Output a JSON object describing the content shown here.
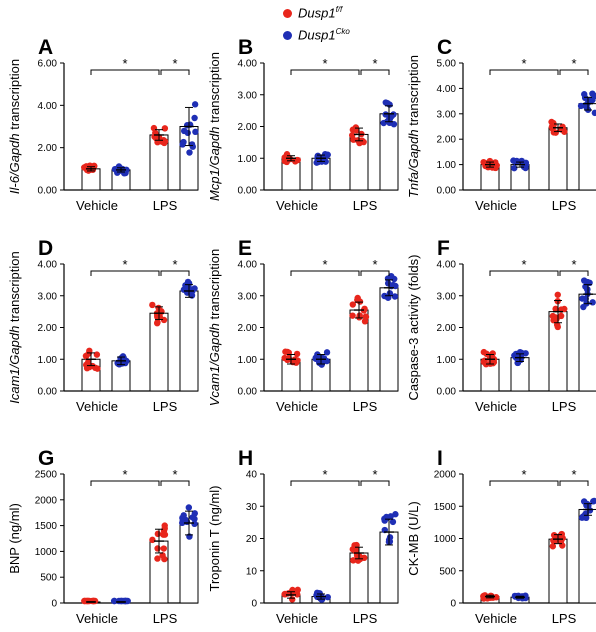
{
  "legend": {
    "wt": {
      "label": "Dusp1",
      "sup": "f/f",
      "color": "#e8261c"
    },
    "ko": {
      "label": "Dusp1",
      "sup": "Cko",
      "color": "#1f2fb5"
    }
  },
  "colors": {
    "wt": "#e8261c",
    "ko": "#1f2fb5"
  },
  "chart_data": [
    {
      "id": "A",
      "letter": "A",
      "type": "bar",
      "ylabel": "Il-6/Gapdh transcription",
      "ylim": [
        0,
        6
      ],
      "yticks": [
        "0.00",
        "2.00",
        "4.00",
        "6.00"
      ],
      "groups": [
        "Vehicle",
        "LPS"
      ],
      "series": [
        {
          "group": "Vehicle",
          "genotype": "wt",
          "mean": 1.0,
          "sd": 0.1
        },
        {
          "group": "Vehicle",
          "genotype": "ko",
          "mean": 0.95,
          "sd": 0.1
        },
        {
          "group": "LPS",
          "genotype": "wt",
          "mean": 2.6,
          "sd": 0.25
        },
        {
          "group": "LPS",
          "genotype": "ko",
          "mean": 3.0,
          "sd": 0.9
        }
      ],
      "significance": [
        {
          "bracket": "vehicle-wt to lps-wt",
          "label": "*"
        },
        {
          "bracket": "lps-wt to lps-ko",
          "label": "*"
        }
      ]
    },
    {
      "id": "B",
      "letter": "B",
      "type": "bar",
      "ylabel": "Mcp1/Gapdh transcription",
      "ylim": [
        0,
        4
      ],
      "yticks": [
        "0.00",
        "1.00",
        "2.00",
        "3.00",
        "4.00"
      ],
      "groups": [
        "Vehicle",
        "LPS"
      ],
      "series": [
        {
          "group": "Vehicle",
          "genotype": "wt",
          "mean": 1.0,
          "sd": 0.08
        },
        {
          "group": "Vehicle",
          "genotype": "ko",
          "mean": 1.0,
          "sd": 0.1
        },
        {
          "group": "LPS",
          "genotype": "wt",
          "mean": 1.75,
          "sd": 0.2
        },
        {
          "group": "LPS",
          "genotype": "ko",
          "mean": 2.4,
          "sd": 0.25
        }
      ],
      "significance": [
        {
          "bracket": "vehicle-wt to lps-wt",
          "label": "*"
        },
        {
          "bracket": "lps-wt to lps-ko",
          "label": "*"
        }
      ]
    },
    {
      "id": "C",
      "letter": "C",
      "type": "bar",
      "ylabel": "Tnfa/Gapdh transcription",
      "ylim": [
        0,
        5
      ],
      "yticks": [
        "0.00",
        "1.00",
        "2.00",
        "3.00",
        "4.00",
        "5.00"
      ],
      "groups": [
        "Vehicle",
        "LPS"
      ],
      "series": [
        {
          "group": "Vehicle",
          "genotype": "wt",
          "mean": 1.0,
          "sd": 0.1
        },
        {
          "group": "Vehicle",
          "genotype": "ko",
          "mean": 1.0,
          "sd": 0.1
        },
        {
          "group": "LPS",
          "genotype": "wt",
          "mean": 2.45,
          "sd": 0.15
        },
        {
          "group": "LPS",
          "genotype": "ko",
          "mean": 3.4,
          "sd": 0.25
        }
      ],
      "significance": [
        {
          "bracket": "vehicle-wt to lps-wt",
          "label": "*"
        },
        {
          "bracket": "lps-wt to lps-ko",
          "label": "*"
        }
      ]
    },
    {
      "id": "D",
      "letter": "D",
      "type": "bar",
      "ylabel": "Icam1/Gapdh transcription",
      "ylim": [
        0,
        4
      ],
      "yticks": [
        "0.00",
        "1.00",
        "2.00",
        "3.00",
        "4.00"
      ],
      "groups": [
        "Vehicle",
        "LPS"
      ],
      "series": [
        {
          "group": "Vehicle",
          "genotype": "wt",
          "mean": 1.0,
          "sd": 0.2
        },
        {
          "group": "Vehicle",
          "genotype": "ko",
          "mean": 0.95,
          "sd": 0.12
        },
        {
          "group": "LPS",
          "genotype": "wt",
          "mean": 2.45,
          "sd": 0.2
        },
        {
          "group": "LPS",
          "genotype": "ko",
          "mean": 3.15,
          "sd": 0.2
        }
      ],
      "significance": [
        {
          "bracket": "vehicle-wt to lps-wt",
          "label": "*"
        },
        {
          "bracket": "lps-wt to lps-ko",
          "label": "*"
        }
      ]
    },
    {
      "id": "E",
      "letter": "E",
      "type": "bar",
      "ylabel": "Vcam1/Gapdh transcription",
      "ylim": [
        0,
        4
      ],
      "yticks": [
        "0.00",
        "1.00",
        "2.00",
        "3.00",
        "4.00"
      ],
      "groups": [
        "Vehicle",
        "LPS"
      ],
      "series": [
        {
          "group": "Vehicle",
          "genotype": "wt",
          "mean": 1.0,
          "sd": 0.15
        },
        {
          "group": "Vehicle",
          "genotype": "ko",
          "mean": 1.0,
          "sd": 0.15
        },
        {
          "group": "LPS",
          "genotype": "wt",
          "mean": 2.55,
          "sd": 0.25
        },
        {
          "group": "LPS",
          "genotype": "ko",
          "mean": 3.25,
          "sd": 0.25
        }
      ],
      "significance": [
        {
          "bracket": "vehicle-wt to lps-wt",
          "label": "*"
        },
        {
          "bracket": "lps-wt to lps-ko",
          "label": "*"
        }
      ]
    },
    {
      "id": "F",
      "letter": "F",
      "type": "bar",
      "ylabel": "Caspase-3 activity (folds)",
      "ylim": [
        0,
        4
      ],
      "yticks": [
        "0.00",
        "1.00",
        "2.00",
        "3.00",
        "4.00"
      ],
      "groups": [
        "Vehicle",
        "LPS"
      ],
      "series": [
        {
          "group": "Vehicle",
          "genotype": "wt",
          "mean": 1.0,
          "sd": 0.15
        },
        {
          "group": "Vehicle",
          "genotype": "ko",
          "mean": 1.05,
          "sd": 0.12
        },
        {
          "group": "LPS",
          "genotype": "wt",
          "mean": 2.5,
          "sd": 0.35
        },
        {
          "group": "LPS",
          "genotype": "ko",
          "mean": 3.05,
          "sd": 0.3
        }
      ],
      "significance": [
        {
          "bracket": "vehicle-wt to lps-wt",
          "label": "*"
        },
        {
          "bracket": "lps-wt to lps-ko",
          "label": "*"
        }
      ]
    },
    {
      "id": "G",
      "letter": "G",
      "type": "bar",
      "ylabel": "BNP (ng/ml)",
      "ylim": [
        0,
        2500
      ],
      "yticks": [
        "0",
        "500",
        "1000",
        "1500",
        "2000",
        "2500"
      ],
      "groups": [
        "Vehicle",
        "LPS"
      ],
      "series": [
        {
          "group": "Vehicle",
          "genotype": "wt",
          "mean": 20,
          "sd": 5
        },
        {
          "group": "Vehicle",
          "genotype": "ko",
          "mean": 20,
          "sd": 5
        },
        {
          "group": "LPS",
          "genotype": "wt",
          "mean": 1200,
          "sd": 230
        },
        {
          "group": "LPS",
          "genotype": "ko",
          "mean": 1550,
          "sd": 230
        }
      ],
      "significance": [
        {
          "bracket": "vehicle-wt to lps-wt",
          "label": "*"
        },
        {
          "bracket": "lps-wt to lps-ko",
          "label": "*"
        }
      ]
    },
    {
      "id": "H",
      "letter": "H",
      "type": "bar",
      "ylabel": "Troponin T (ng/ml)",
      "ylim": [
        0,
        40
      ],
      "yticks": [
        "0",
        "10",
        "20",
        "30",
        "40"
      ],
      "groups": [
        "Vehicle",
        "LPS"
      ],
      "series": [
        {
          "group": "Vehicle",
          "genotype": "wt",
          "mean": 2.5,
          "sd": 1.0
        },
        {
          "group": "Vehicle",
          "genotype": "ko",
          "mean": 2.0,
          "sd": 0.8
        },
        {
          "group": "LPS",
          "genotype": "wt",
          "mean": 15.5,
          "sd": 1.8
        },
        {
          "group": "LPS",
          "genotype": "ko",
          "mean": 22,
          "sd": 4
        }
      ],
      "significance": [
        {
          "bracket": "vehicle-wt to lps-wt",
          "label": "*"
        },
        {
          "bracket": "lps-wt to lps-ko",
          "label": "*"
        }
      ]
    },
    {
      "id": "I",
      "letter": "I",
      "type": "bar",
      "ylabel": "CK-MB (U/L)",
      "ylim": [
        0,
        2000
      ],
      "yticks": [
        "0",
        "500",
        "1000",
        "1500",
        "2000"
      ],
      "groups": [
        "Vehicle",
        "LPS"
      ],
      "series": [
        {
          "group": "Vehicle",
          "genotype": "wt",
          "mean": 100,
          "sd": 20
        },
        {
          "group": "Vehicle",
          "genotype": "ko",
          "mean": 90,
          "sd": 15
        },
        {
          "group": "LPS",
          "genotype": "wt",
          "mean": 990,
          "sd": 70
        },
        {
          "group": "LPS",
          "genotype": "ko",
          "mean": 1450,
          "sd": 90
        }
      ],
      "significance": [
        {
          "bracket": "vehicle-wt to lps-wt",
          "label": "*"
        },
        {
          "bracket": "lps-wt to lps-ko",
          "label": "*"
        }
      ]
    }
  ]
}
